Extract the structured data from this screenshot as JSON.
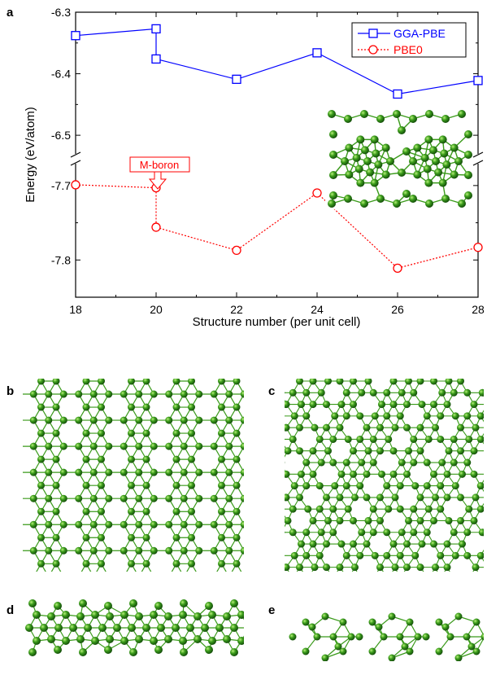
{
  "panel_labels": {
    "a": "a",
    "b": "b",
    "c": "c",
    "d": "d",
    "e": "e"
  },
  "chart_data": {
    "type": "line",
    "xlabel": "Structure number (per unit cell)",
    "ylabel": "Energy (eV/atom)",
    "x_ticks": [
      "18",
      "20",
      "22",
      "24",
      "26",
      "28"
    ],
    "xlim": [
      18,
      28
    ],
    "y_break": true,
    "upper_ylim": [
      -6.525,
      -6.3
    ],
    "upper_y_ticks": [
      "-6.3",
      "-6.4",
      "-6.5"
    ],
    "lower_ylim": [
      -7.85,
      -7.675
    ],
    "lower_y_ticks": [
      "-7.7",
      "-7.8"
    ],
    "grid": false,
    "legend_position": "top-right",
    "series": [
      {
        "name": "GGA-PBE",
        "color": "#0000ff",
        "marker": "square",
        "line": "solid",
        "points": [
          {
            "x": 18,
            "y": -6.338
          },
          {
            "x": 20,
            "y": -6.327
          },
          {
            "x": 20,
            "y": -6.376
          },
          {
            "x": 22,
            "y": -6.409
          },
          {
            "x": 24,
            "y": -6.366
          },
          {
            "x": 26,
            "y": -6.433
          },
          {
            "x": 28,
            "y": -6.411
          }
        ]
      },
      {
        "name": "PBE0",
        "color": "#ff0000",
        "marker": "circle",
        "line": "dotted",
        "points": [
          {
            "x": 18,
            "y": -7.699
          },
          {
            "x": 20,
            "y": -7.703
          },
          {
            "x": 20,
            "y": -7.756
          },
          {
            "x": 22,
            "y": -7.787
          },
          {
            "x": 24,
            "y": -7.71
          },
          {
            "x": 26,
            "y": -7.811
          },
          {
            "x": 28,
            "y": -7.783
          }
        ]
      }
    ],
    "annotations": [
      {
        "text": "M-boron",
        "x": 20,
        "y": -7.703,
        "color": "#ff0000"
      }
    ]
  },
  "structure_images": {
    "inset": "boron-cluster-icon",
    "b": "boron-sheet-icon",
    "c": "boron-sheet-icon",
    "d": "boron-nanoribbon-icon",
    "e": "boron-nanoribbon-icon"
  }
}
